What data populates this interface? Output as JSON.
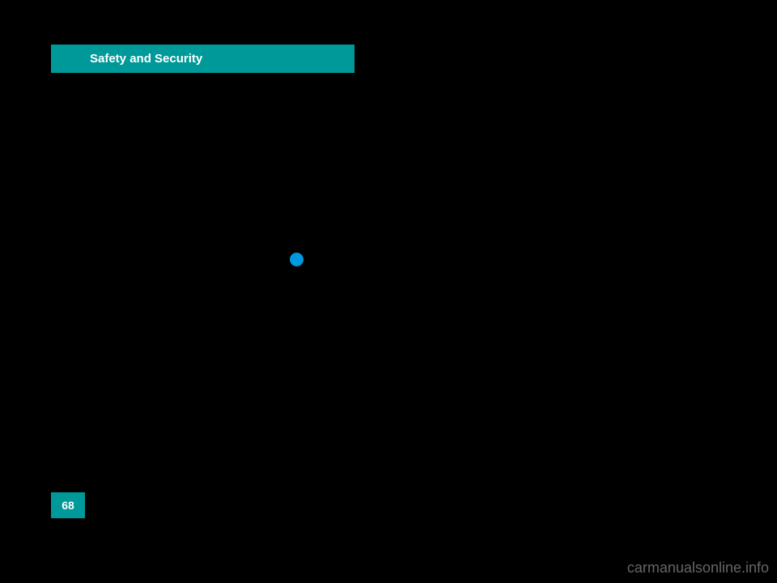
{
  "header": {
    "tab_label": "Safety and Security",
    "tab_background": "#009999",
    "tab_text_color": "#ffffff"
  },
  "page": {
    "number": "68",
    "background_color": "#000000",
    "number_box_color": "#009999",
    "number_text_color": "#ffffff"
  },
  "marker": {
    "dot_color": "#0099dd"
  },
  "watermark": {
    "text": "carmanualsonline.info",
    "color": "#666666"
  }
}
